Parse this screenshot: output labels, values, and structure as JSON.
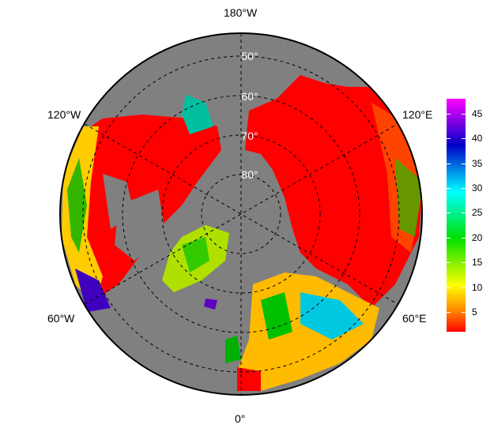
{
  "map": {
    "projection": "north-polar-stereographic",
    "meridian_labels": {
      "top": "180°W",
      "bottom": "0°",
      "upper_left": "120°W",
      "lower_left": "60°W",
      "upper_right": "120°E",
      "lower_right": "60°E"
    },
    "latitude_labels": [
      "50°",
      "60°",
      "70°",
      "80°"
    ],
    "ocean_color": "#808080",
    "dominant_land_color": "#ff0000"
  },
  "colorbar": {
    "ticks": [
      5,
      10,
      15,
      20,
      25,
      30,
      35,
      40,
      45
    ],
    "range": [
      1,
      48
    ],
    "colormap": [
      "#ff0000",
      "#ffff00",
      "#00e000",
      "#00ffff",
      "#0000c8",
      "#ff00ff"
    ]
  }
}
